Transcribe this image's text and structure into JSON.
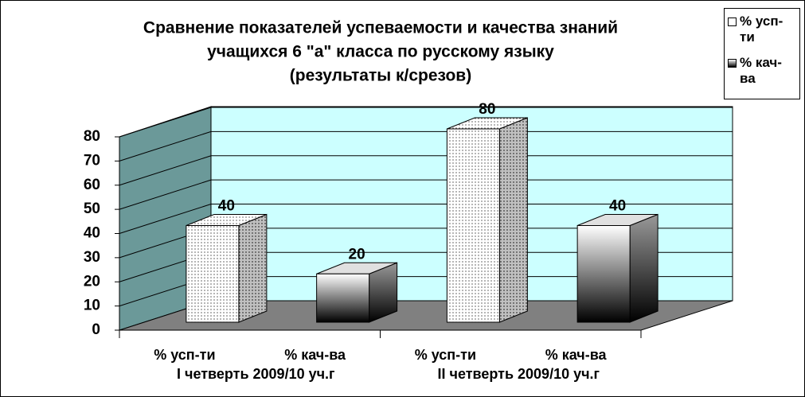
{
  "chart_data": {
    "type": "bar3d",
    "title": [
      "Сравнение показателей успеваемости и качества знаний",
      "учащихся 6 \"а\" класса по русскому языку",
      "(результаты к/срезов)"
    ],
    "categories": [
      "I четверть 2009/10 уч.г",
      "II четверть 2009/10 уч.г"
    ],
    "series": [
      {
        "name": "% усп-ти",
        "color": "#ffffff",
        "values": [
          40,
          80
        ]
      },
      {
        "name": "% кач-ва",
        "color": "#000000",
        "values": [
          20,
          40
        ]
      }
    ],
    "ylim": [
      0,
      80
    ],
    "yticks": [
      0,
      10,
      20,
      30,
      40,
      50,
      60,
      70,
      80
    ],
    "grid": true,
    "legend": "top-right"
  }
}
